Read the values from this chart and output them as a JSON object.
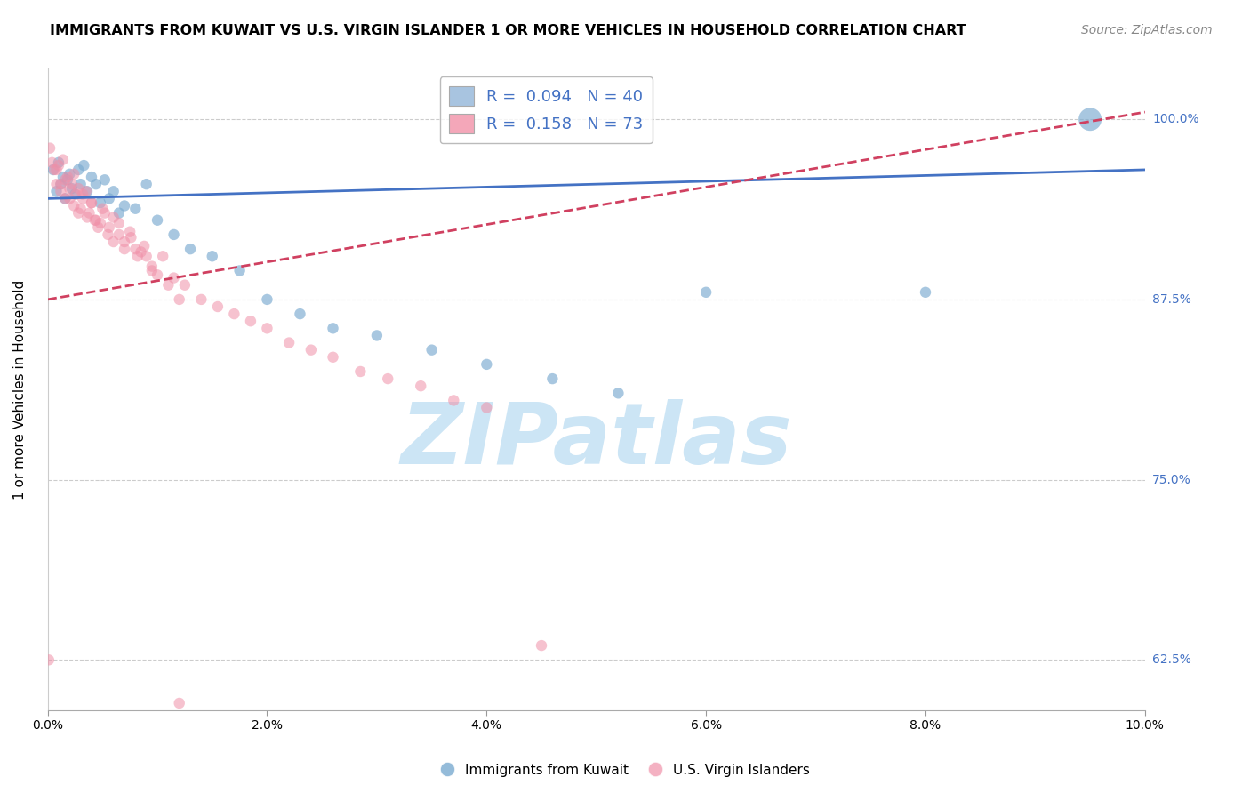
{
  "title": "IMMIGRANTS FROM KUWAIT VS U.S. VIRGIN ISLANDER 1 OR MORE VEHICLES IN HOUSEHOLD CORRELATION CHART",
  "source": "Source: ZipAtlas.com",
  "ylabel": "1 or more Vehicles in Household",
  "xlim": [
    0.0,
    10.0
  ],
  "ylim": [
    59.0,
    103.5
  ],
  "yticks": [
    62.5,
    75.0,
    87.5,
    100.0
  ],
  "xticks": [
    0.0,
    2.0,
    4.0,
    6.0,
    8.0,
    10.0
  ],
  "xtick_labels": [
    "0.0%",
    "2.0%",
    "4.0%",
    "6.0%",
    "8.0%",
    "10.0%"
  ],
  "ytick_labels": [
    "62.5%",
    "75.0%",
    "87.5%",
    "100.0%"
  ],
  "legend1_label": "R =  0.094   N = 40",
  "legend2_label": "R =  0.158   N = 73",
  "legend1_color": "#a8c4e0",
  "legend2_color": "#f4a7b9",
  "trend1_color": "#4472c4",
  "trend2_color": "#d04060",
  "scatter1_color": "#7aaad0",
  "scatter2_color": "#f090a8",
  "watermark": "ZIPatlas",
  "watermark_color": "#cce5f5",
  "grid_color": "#cccccc",
  "blue_scatter_x": [
    0.05,
    0.08,
    0.1,
    0.12,
    0.14,
    0.16,
    0.18,
    0.2,
    0.22,
    0.25,
    0.28,
    0.3,
    0.33,
    0.36,
    0.4,
    0.44,
    0.48,
    0.52,
    0.56,
    0.6,
    0.65,
    0.7,
    0.8,
    0.9,
    1.0,
    1.15,
    1.3,
    1.5,
    1.75,
    2.0,
    2.3,
    2.6,
    3.0,
    3.5,
    4.0,
    4.6,
    5.2,
    6.0,
    8.0,
    9.5
  ],
  "blue_scatter_y": [
    96.5,
    95.0,
    97.0,
    95.5,
    96.0,
    94.5,
    95.8,
    96.2,
    95.2,
    94.8,
    96.5,
    95.5,
    96.8,
    95.0,
    96.0,
    95.5,
    94.2,
    95.8,
    94.5,
    95.0,
    93.5,
    94.0,
    93.8,
    95.5,
    93.0,
    92.0,
    91.0,
    90.5,
    89.5,
    87.5,
    86.5,
    85.5,
    85.0,
    84.0,
    83.0,
    82.0,
    81.0,
    88.0,
    88.0,
    100.0
  ],
  "blue_scatter_sizes": [
    80,
    80,
    80,
    80,
    80,
    80,
    80,
    80,
    80,
    80,
    80,
    80,
    80,
    80,
    80,
    80,
    80,
    80,
    80,
    80,
    80,
    80,
    80,
    80,
    80,
    80,
    80,
    80,
    80,
    80,
    80,
    80,
    80,
    80,
    80,
    80,
    80,
    80,
    80,
    350
  ],
  "pink_scatter_x": [
    0.02,
    0.04,
    0.06,
    0.08,
    0.1,
    0.12,
    0.14,
    0.16,
    0.18,
    0.2,
    0.22,
    0.24,
    0.26,
    0.28,
    0.3,
    0.32,
    0.35,
    0.38,
    0.4,
    0.43,
    0.46,
    0.5,
    0.55,
    0.6,
    0.65,
    0.7,
    0.76,
    0.82,
    0.88,
    0.95,
    1.05,
    1.15,
    1.25,
    1.4,
    1.55,
    1.7,
    1.85,
    2.0,
    2.2,
    2.4,
    2.6,
    2.85,
    3.1,
    3.4,
    3.7,
    4.0,
    0.08,
    0.12,
    0.16,
    0.2,
    0.24,
    0.28,
    0.32,
    0.36,
    0.4,
    0.44,
    0.48,
    0.52,
    0.56,
    0.6,
    0.65,
    0.7,
    0.75,
    0.8,
    0.85,
    0.9,
    0.95,
    1.0,
    1.1,
    1.2,
    0.01,
    4.5,
    1.2
  ],
  "pink_scatter_y": [
    98.0,
    97.0,
    96.5,
    95.5,
    96.8,
    95.0,
    97.2,
    95.8,
    96.0,
    94.5,
    95.5,
    96.2,
    94.8,
    95.2,
    93.8,
    94.5,
    95.0,
    93.5,
    94.2,
    93.0,
    92.5,
    93.8,
    92.0,
    91.5,
    92.8,
    91.0,
    91.8,
    90.5,
    91.2,
    89.8,
    90.5,
    89.0,
    88.5,
    87.5,
    87.0,
    86.5,
    86.0,
    85.5,
    84.5,
    84.0,
    83.5,
    82.5,
    82.0,
    81.5,
    80.5,
    80.0,
    96.5,
    95.5,
    94.5,
    95.2,
    94.0,
    93.5,
    94.8,
    93.2,
    94.2,
    93.0,
    92.8,
    93.5,
    92.5,
    93.2,
    92.0,
    91.5,
    92.2,
    91.0,
    90.8,
    90.5,
    89.5,
    89.2,
    88.5,
    87.5,
    62.5,
    63.5,
    59.5
  ],
  "blue_trend_x": [
    0.0,
    10.0
  ],
  "blue_trend_y": [
    94.5,
    96.5
  ],
  "pink_trend_x": [
    0.0,
    10.0
  ],
  "pink_trend_y": [
    87.5,
    100.5
  ]
}
